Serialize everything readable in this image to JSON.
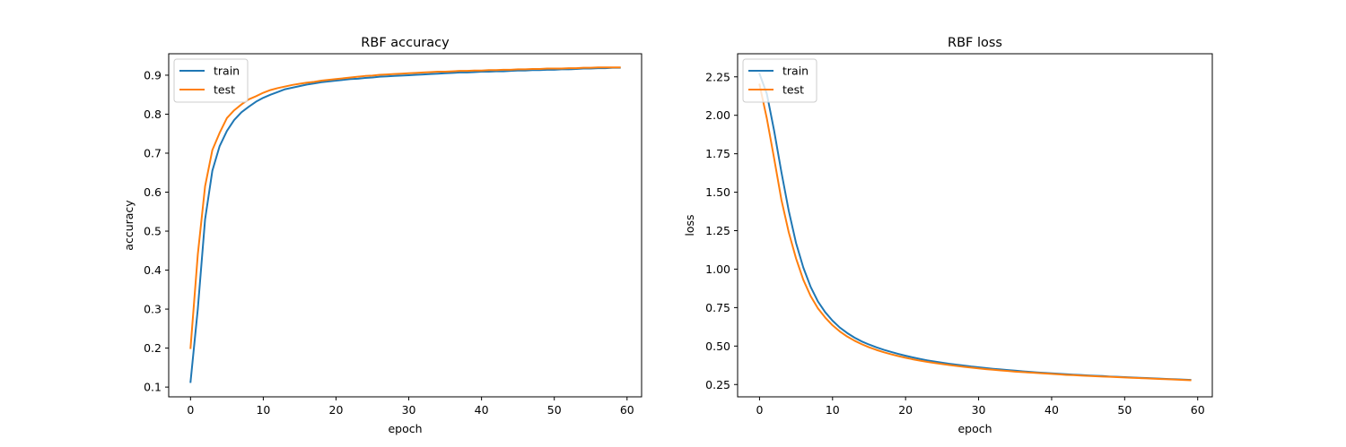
{
  "chart_data": [
    {
      "type": "line",
      "title": "RBF accuracy",
      "xlabel": "epoch",
      "ylabel": "accuracy",
      "xlim": [
        -3,
        62
      ],
      "ylim": [
        0.075,
        0.955
      ],
      "xticks": [
        0,
        10,
        20,
        30,
        40,
        50,
        60
      ],
      "yticks": [
        0.1,
        0.2,
        0.3,
        0.4,
        0.5,
        0.6,
        0.7,
        0.8,
        0.9
      ],
      "grid": false,
      "legend": "upper left",
      "series": [
        {
          "name": "train",
          "color": "#1f77b4",
          "x": [
            0,
            1,
            2,
            3,
            4,
            5,
            6,
            7,
            8,
            9,
            10,
            11,
            12,
            13,
            14,
            15,
            16,
            17,
            18,
            19,
            20,
            21,
            22,
            23,
            24,
            25,
            26,
            27,
            28,
            29,
            30,
            31,
            32,
            33,
            34,
            35,
            36,
            37,
            38,
            39,
            40,
            41,
            42,
            43,
            44,
            45,
            46,
            47,
            48,
            49,
            50,
            51,
            52,
            53,
            54,
            55,
            56,
            57,
            58,
            59
          ],
          "y": [
            0.113,
            0.3,
            0.53,
            0.655,
            0.718,
            0.757,
            0.785,
            0.805,
            0.819,
            0.832,
            0.842,
            0.85,
            0.857,
            0.864,
            0.868,
            0.872,
            0.876,
            0.879,
            0.882,
            0.884,
            0.886,
            0.888,
            0.89,
            0.891,
            0.893,
            0.894,
            0.896,
            0.897,
            0.898,
            0.899,
            0.9,
            0.901,
            0.902,
            0.903,
            0.904,
            0.905,
            0.906,
            0.907,
            0.907,
            0.908,
            0.909,
            0.909,
            0.91,
            0.91,
            0.911,
            0.912,
            0.912,
            0.913,
            0.913,
            0.914,
            0.914,
            0.915,
            0.915,
            0.916,
            0.917,
            0.917,
            0.918,
            0.918,
            0.919,
            0.919
          ]
        },
        {
          "name": "test",
          "color": "#ff7f0e",
          "x": [
            0,
            1,
            2,
            3,
            4,
            5,
            6,
            7,
            8,
            9,
            10,
            11,
            12,
            13,
            14,
            15,
            16,
            17,
            18,
            19,
            20,
            21,
            22,
            23,
            24,
            25,
            26,
            27,
            28,
            29,
            30,
            31,
            32,
            33,
            34,
            35,
            36,
            37,
            38,
            39,
            40,
            41,
            42,
            43,
            44,
            45,
            46,
            47,
            48,
            49,
            50,
            51,
            52,
            53,
            54,
            55,
            56,
            57,
            58,
            59
          ],
          "y": [
            0.2,
            0.44,
            0.615,
            0.708,
            0.752,
            0.79,
            0.81,
            0.825,
            0.838,
            0.846,
            0.855,
            0.862,
            0.867,
            0.871,
            0.875,
            0.878,
            0.881,
            0.883,
            0.886,
            0.888,
            0.89,
            0.892,
            0.894,
            0.896,
            0.898,
            0.899,
            0.901,
            0.902,
            0.903,
            0.904,
            0.905,
            0.906,
            0.907,
            0.908,
            0.909,
            0.909,
            0.91,
            0.911,
            0.911,
            0.912,
            0.912,
            0.913,
            0.913,
            0.914,
            0.914,
            0.915,
            0.915,
            0.916,
            0.916,
            0.917,
            0.917,
            0.917,
            0.918,
            0.918,
            0.919,
            0.919,
            0.92,
            0.92,
            0.92,
            0.92
          ]
        }
      ]
    },
    {
      "type": "line",
      "title": "RBF loss",
      "xlabel": "epoch",
      "ylabel": "loss",
      "xlim": [
        -3,
        62
      ],
      "ylim": [
        0.17,
        2.4
      ],
      "xticks": [
        0,
        10,
        20,
        30,
        40,
        50,
        60
      ],
      "yticks": [
        0.25,
        0.5,
        0.75,
        1.0,
        1.25,
        1.5,
        1.75,
        2.0,
        2.25
      ],
      "yticklabels": [
        "0.25",
        "0.50",
        "0.75",
        "1.00",
        "1.25",
        "1.50",
        "1.75",
        "2.00",
        "2.25"
      ],
      "grid": false,
      "legend": "upper left",
      "series": [
        {
          "name": "train",
          "color": "#1f77b4",
          "x": [
            0,
            1,
            2,
            3,
            4,
            5,
            6,
            7,
            8,
            9,
            10,
            11,
            12,
            13,
            14,
            15,
            16,
            17,
            18,
            19,
            20,
            21,
            22,
            23,
            24,
            25,
            26,
            27,
            28,
            29,
            30,
            31,
            32,
            33,
            34,
            35,
            36,
            37,
            38,
            39,
            40,
            41,
            42,
            43,
            44,
            45,
            46,
            47,
            48,
            49,
            50,
            51,
            52,
            53,
            54,
            55,
            56,
            57,
            58,
            59
          ],
          "y": [
            2.27,
            2.14,
            1.9,
            1.63,
            1.38,
            1.17,
            1.01,
            0.885,
            0.79,
            0.72,
            0.665,
            0.62,
            0.585,
            0.555,
            0.53,
            0.51,
            0.492,
            0.476,
            0.462,
            0.449,
            0.437,
            0.426,
            0.416,
            0.407,
            0.399,
            0.392,
            0.385,
            0.379,
            0.373,
            0.367,
            0.362,
            0.357,
            0.352,
            0.348,
            0.344,
            0.34,
            0.336,
            0.332,
            0.329,
            0.326,
            0.323,
            0.32,
            0.317,
            0.314,
            0.312,
            0.309,
            0.307,
            0.305,
            0.302,
            0.3,
            0.298,
            0.296,
            0.294,
            0.292,
            0.29,
            0.288,
            0.286,
            0.284,
            0.282,
            0.28
          ]
        },
        {
          "name": "test",
          "color": "#ff7f0e",
          "x": [
            0,
            1,
            2,
            3,
            4,
            5,
            6,
            7,
            8,
            9,
            10,
            11,
            12,
            13,
            14,
            15,
            16,
            17,
            18,
            19,
            20,
            21,
            22,
            23,
            24,
            25,
            26,
            27,
            28,
            29,
            30,
            31,
            32,
            33,
            34,
            35,
            36,
            37,
            38,
            39,
            40,
            41,
            42,
            43,
            44,
            45,
            46,
            47,
            48,
            49,
            50,
            51,
            52,
            53,
            54,
            55,
            56,
            57,
            58,
            59
          ],
          "y": [
            2.2,
            1.98,
            1.72,
            1.45,
            1.24,
            1.07,
            0.93,
            0.825,
            0.745,
            0.685,
            0.635,
            0.595,
            0.562,
            0.535,
            0.512,
            0.492,
            0.475,
            0.46,
            0.447,
            0.435,
            0.424,
            0.414,
            0.405,
            0.397,
            0.39,
            0.383,
            0.377,
            0.371,
            0.365,
            0.36,
            0.355,
            0.35,
            0.346,
            0.342,
            0.338,
            0.334,
            0.331,
            0.328,
            0.325,
            0.322,
            0.319,
            0.316,
            0.313,
            0.311,
            0.308,
            0.306,
            0.304,
            0.302,
            0.3,
            0.298,
            0.296,
            0.294,
            0.292,
            0.29,
            0.288,
            0.286,
            0.284,
            0.282,
            0.28,
            0.278
          ]
        }
      ]
    }
  ]
}
